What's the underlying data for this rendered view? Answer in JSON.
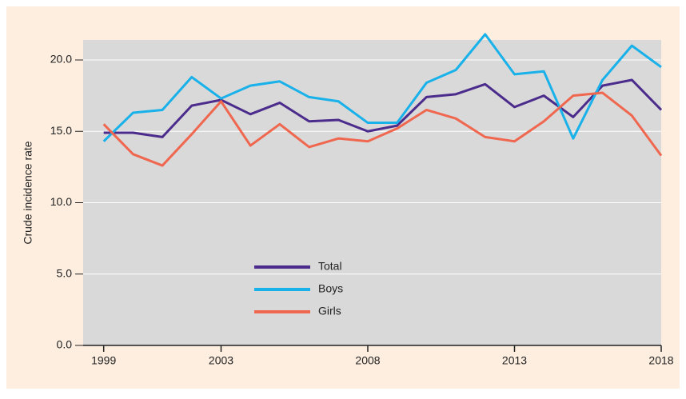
{
  "chart_data": {
    "type": "line",
    "y_label": "Crude incidence rate",
    "x": [
      1999,
      2000,
      2001,
      2002,
      2003,
      2004,
      2005,
      2006,
      2007,
      2008,
      2009,
      2010,
      2011,
      2012,
      2013,
      2014,
      2015,
      2016,
      2017,
      2018
    ],
    "series": [
      {
        "name": "Total",
        "color": "#4b2c8c",
        "values": [
          14.9,
          14.9,
          14.6,
          16.8,
          17.2,
          16.2,
          17.0,
          15.7,
          15.8,
          15.0,
          15.4,
          17.4,
          17.6,
          18.3,
          16.7,
          17.5,
          16.0,
          18.2,
          18.6,
          16.5
        ]
      },
      {
        "name": "Boys",
        "color": "#19b1ea",
        "values": [
          14.3,
          16.3,
          16.5,
          18.8,
          17.3,
          18.2,
          18.5,
          17.4,
          17.1,
          15.6,
          15.6,
          18.4,
          19.3,
          21.8,
          19.0,
          19.2,
          14.5,
          18.6,
          21.0,
          19.5
        ]
      },
      {
        "name": "Girls",
        "color": "#f0674f",
        "values": [
          15.5,
          13.4,
          12.6,
          14.8,
          17.1,
          14.0,
          15.5,
          13.9,
          14.5,
          14.3,
          15.2,
          16.5,
          15.9,
          14.6,
          14.3,
          15.7,
          17.5,
          17.7,
          16.1,
          13.3
        ]
      }
    ],
    "xlim": [
      1998.3,
      2018
    ],
    "xticks": [
      1999,
      2003,
      2008,
      2013,
      2018
    ],
    "ylim": [
      0,
      21.4
    ],
    "yticks": [
      {
        "value": 0,
        "label": "0.0"
      },
      {
        "value": 5,
        "label": "5.0"
      },
      {
        "value": 10,
        "label": "10.0"
      },
      {
        "value": 15,
        "label": "15.0"
      },
      {
        "value": 20,
        "label": "20.0"
      }
    ],
    "grid": true
  }
}
